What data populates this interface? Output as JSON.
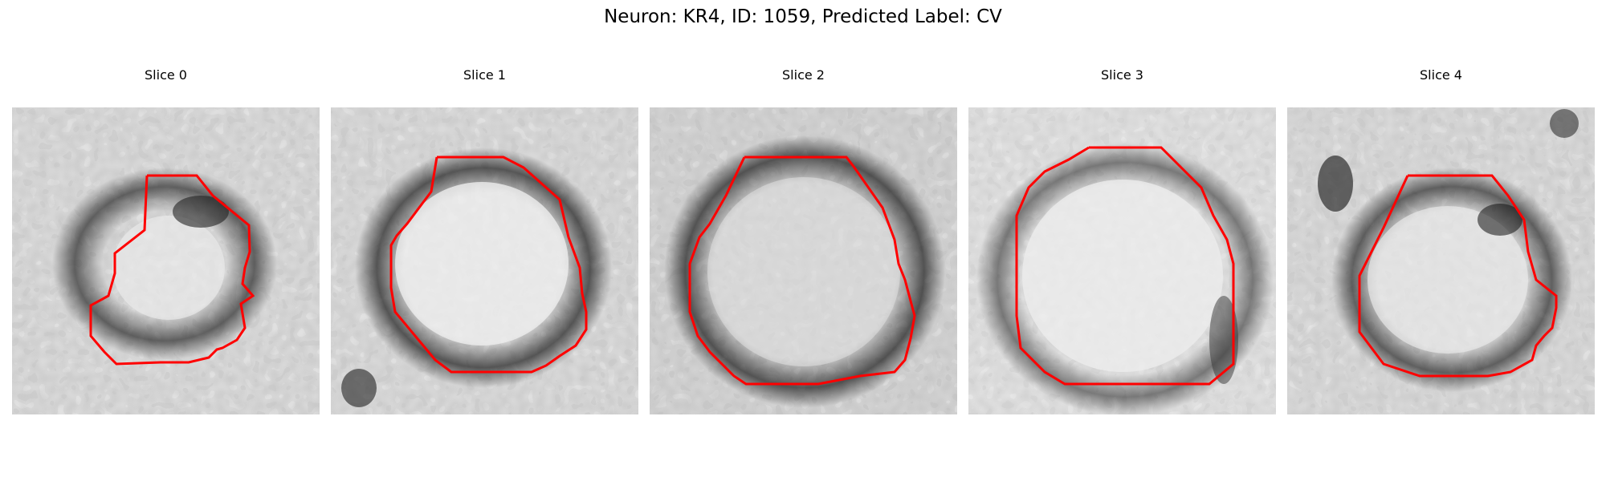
{
  "figure": {
    "title": "Neuron: KR4, ID: 1059, Predicted Label: CV",
    "contour_color": "#ff0000"
  },
  "slices": [
    {
      "title": "Slice 0"
    },
    {
      "title": "Slice 1"
    },
    {
      "title": "Slice 2"
    },
    {
      "title": "Slice 3"
    },
    {
      "title": "Slice 4"
    }
  ]
}
